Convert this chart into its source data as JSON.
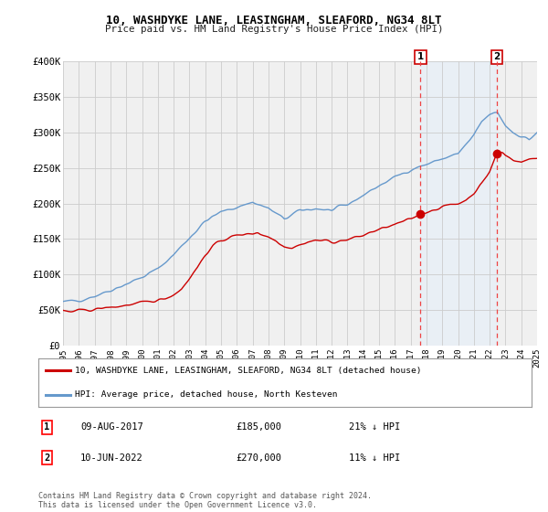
{
  "title": "10, WASHDYKE LANE, LEASINGHAM, SLEAFORD, NG34 8LT",
  "subtitle": "Price paid vs. HM Land Registry's House Price Index (HPI)",
  "legend_label_red": "10, WASHDYKE LANE, LEASINGHAM, SLEAFORD, NG34 8LT (detached house)",
  "legend_label_blue": "HPI: Average price, detached house, North Kesteven",
  "sale1_label": "1",
  "sale1_date": "09-AUG-2017",
  "sale1_price": "£185,000",
  "sale1_hpi": "21% ↓ HPI",
  "sale2_label": "2",
  "sale2_date": "10-JUN-2022",
  "sale2_price": "£270,000",
  "sale2_hpi": "11% ↓ HPI",
  "footnote": "Contains HM Land Registry data © Crown copyright and database right 2024.\nThis data is licensed under the Open Government Licence v3.0.",
  "xmin": 1995,
  "xmax": 2025,
  "ymin": 0,
  "ymax": 400000,
  "yticks": [
    0,
    50000,
    100000,
    150000,
    200000,
    250000,
    300000,
    350000,
    400000
  ],
  "ytick_labels": [
    "£0",
    "£50K",
    "£100K",
    "£150K",
    "£200K",
    "£250K",
    "£300K",
    "£350K",
    "£400K"
  ],
  "color_red": "#cc0000",
  "color_blue": "#6699cc",
  "color_dashed_red": "#ee4444",
  "color_shade_blue": "#ddeeff",
  "background_plot": "#f0f0f0",
  "background_fig": "#ffffff",
  "grid_color": "#cccccc",
  "sale1_x": 2017.62,
  "sale1_y": 185000,
  "sale2_x": 2022.45,
  "sale2_y": 270000
}
